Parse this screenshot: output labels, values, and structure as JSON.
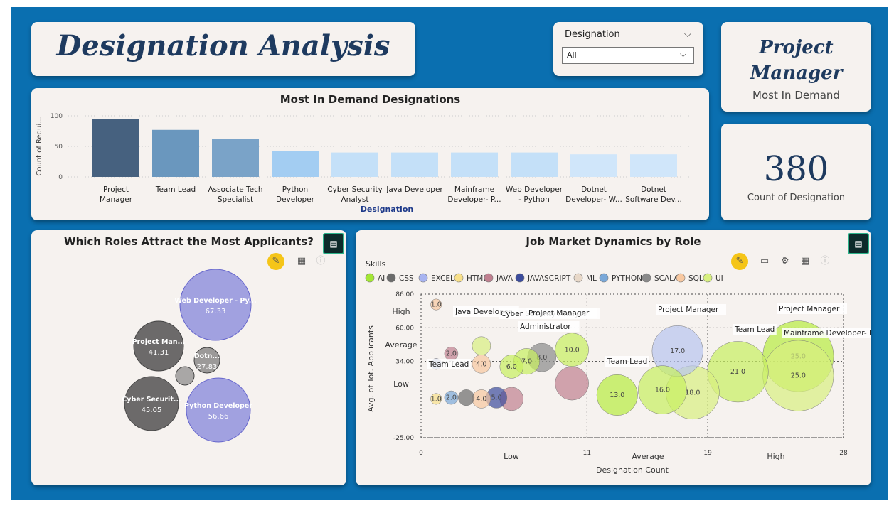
{
  "header": {
    "title": "Designation Analysis"
  },
  "slicer": {
    "label": "Designation",
    "value": "All"
  },
  "kpi_most_demand": {
    "value_line1": "Project",
    "value_line2": "Manager",
    "caption": "Most In Demand"
  },
  "kpi_count": {
    "value": "380",
    "caption": "Count of Designation"
  },
  "chart_data": [
    {
      "type": "bar",
      "title": "Most In Demand Designations",
      "xlabel": "Designation",
      "ylabel": "Count of Requi...",
      "ylim": [
        0,
        100
      ],
      "yticks": [
        "100",
        "50",
        "0"
      ],
      "categories": [
        [
          "Project",
          "Manager"
        ],
        [
          "Team Lead"
        ],
        [
          "Associate Tech",
          "Specialist"
        ],
        [
          "Python",
          "Developer"
        ],
        [
          "Cyber Security",
          "Analyst"
        ],
        [
          "Java Developer"
        ],
        [
          "Mainframe",
          "Developer- P..."
        ],
        [
          "Web Developer",
          "- Python"
        ],
        [
          "Dotnet",
          "Developer- W..."
        ],
        [
          "Dotnet",
          "Software Dev..."
        ]
      ],
      "values": [
        95,
        77,
        62,
        42,
        40,
        40,
        40,
        40,
        37,
        37
      ],
      "colors": [
        "#46617f",
        "#6a97be",
        "#7aa3c8",
        "#a3cdf2",
        "#c4e0f8",
        "#c4e0f8",
        "#c4e0f8",
        "#c4e0f8",
        "#d0e6fa",
        "#d0e6fa"
      ]
    },
    {
      "type": "bubble",
      "title": "Which Roles Attract the Most Applicants?",
      "bubbles": [
        {
          "label": "Web Developer - Py...",
          "value": "67.33",
          "color": "#a1a1e0"
        },
        {
          "label": "Project Man...",
          "value": "41.31",
          "color": "#6c6a6a"
        },
        {
          "label": "Dotn...",
          "value": "27.83",
          "color": "#9c9a99"
        },
        {
          "label": "",
          "value": "",
          "color": "#a9a7a6"
        },
        {
          "label": "Cyber Securit...",
          "value": "45.05",
          "color": "#6c6a6a"
        },
        {
          "label": "Python Developer",
          "value": "56.66",
          "color": "#a1a1e0"
        }
      ]
    },
    {
      "type": "scatter",
      "title": "Job Market Dynamics by Role",
      "legend_title": "Skills",
      "legend": [
        {
          "name": "AI",
          "color": "#a3e635"
        },
        {
          "name": "CSS",
          "color": "#6b6b6b"
        },
        {
          "name": "EXCEL",
          "color": "#a8b4f0"
        },
        {
          "name": "HTML",
          "color": "#f8e08a"
        },
        {
          "name": "JAVA",
          "color": "#c08090"
        },
        {
          "name": "JAVASCRIPT",
          "color": "#3c4c9c"
        },
        {
          "name": "ML",
          "color": "#e8d8c8"
        },
        {
          "name": "PYTHON",
          "color": "#7aa8d8"
        },
        {
          "name": "SCALA",
          "color": "#8a8a8a"
        },
        {
          "name": "SQL",
          "color": "#f8c8a0"
        },
        {
          "name": "UI",
          "color": "#d8f080"
        }
      ],
      "xlabel": "Designation Count",
      "ylabel": "Avg. of Tot. Applicants",
      "xticks": [
        "0",
        "11",
        "19",
        "28"
      ],
      "yticks": [
        "86.00",
        "60.00",
        "34.00",
        "-25.00"
      ],
      "xlim": [
        0,
        28
      ],
      "ylim": [
        -25,
        86
      ],
      "x_bands": [
        "Low",
        "Average",
        "High"
      ],
      "y_bands": [
        "High",
        "Average",
        "Low"
      ],
      "points": [
        {
          "x": 1,
          "y": 78,
          "size": 1.0,
          "color": "#f8c8a0",
          "label": "1.0"
        },
        {
          "x": 2,
          "y": 40,
          "size": 2.0,
          "color": "#c08090",
          "label": "2.0"
        },
        {
          "x": 1,
          "y": 32,
          "size": 1.0,
          "color": "#3c4c9c",
          "label": ""
        },
        {
          "x": 4,
          "y": 32,
          "size": 4.0,
          "color": "#f8c8a0",
          "label": "4.0"
        },
        {
          "x": 4,
          "y": 46,
          "size": 4.0,
          "color": "#d8f080",
          "label": ""
        },
        {
          "x": 6,
          "y": 30,
          "size": 6.0,
          "color": "#c8f060",
          "label": "6.0"
        },
        {
          "x": 7,
          "y": 34,
          "size": 7.0,
          "color": "#c8f060",
          "label": "7.0"
        },
        {
          "x": 8,
          "y": 37,
          "size": 8.0,
          "color": "#8a8a8a",
          "label": "8.0"
        },
        {
          "x": 10,
          "y": 43,
          "size": 10.0,
          "color": "#c8f060",
          "label": "10.0"
        },
        {
          "x": 10,
          "y": 17,
          "size": 10.0,
          "color": "#c08090",
          "label": ""
        },
        {
          "x": 13,
          "y": 8,
          "size": 13.0,
          "color": "#b8ec40",
          "label": "13.0"
        },
        {
          "x": 16,
          "y": 12,
          "size": 16.0,
          "color": "#c8f060",
          "label": "16.0"
        },
        {
          "x": 17,
          "y": 42,
          "size": 17.0,
          "color": "#b8c4f0",
          "label": "17.0"
        },
        {
          "x": 18,
          "y": 10,
          "size": 18.0,
          "color": "#d8f080",
          "label": "18.0"
        },
        {
          "x": 21,
          "y": 26,
          "size": 21.0,
          "color": "#c8f060",
          "label": "21.0"
        },
        {
          "x": 25,
          "y": 38,
          "size": 25.0,
          "color": "#b8ec40",
          "label": "25.0"
        },
        {
          "x": 25,
          "y": 23,
          "size": 25.0,
          "color": "#d8f080",
          "label": "25.0"
        },
        {
          "x": 1,
          "y": 5,
          "size": 1.0,
          "color": "#f8e08a",
          "label": "1.0"
        },
        {
          "x": 2,
          "y": 6,
          "size": 2.0,
          "color": "#7aa8d8",
          "label": "2.0"
        },
        {
          "x": 3,
          "y": 6,
          "size": 3.0,
          "color": "#6b6b6b",
          "label": ""
        },
        {
          "x": 4,
          "y": 5,
          "size": 4.0,
          "color": "#f8c8a0",
          "label": "4.0"
        },
        {
          "x": 5,
          "y": 6,
          "size": 5.0,
          "color": "#3c4c9c",
          "label": "5.0"
        },
        {
          "x": 6,
          "y": 5,
          "size": 6.0,
          "color": "#c08090",
          "label": ""
        }
      ],
      "annotations": [
        "Java Developer",
        "Cyber Security Analyst",
        "Project Manager",
        "Project Manager",
        "Project Manager",
        "Administrator",
        "Team Lead",
        "Team Lead",
        "Mainframe Developer- PAN India",
        "Team Lead"
      ]
    }
  ]
}
